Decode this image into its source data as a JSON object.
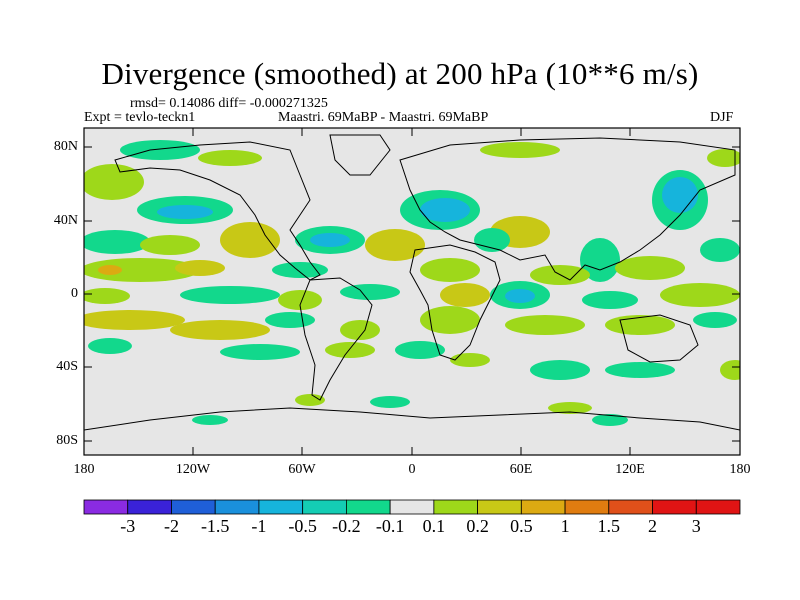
{
  "title": "Divergence (smoothed) at 200 hPa (10**6 m/s)",
  "stats": "rmsd= 0.14086 diff= -0.000271325",
  "expt": "Expt = tevlo-teckn1",
  "comparison": "Maastri.  69MaBP - Maastri.  69MaBP",
  "season": "DJF",
  "y_ticks": [
    "80N",
    "40N",
    "0",
    "40S",
    "80S"
  ],
  "x_ticks": [
    "180",
    "120W",
    "60W",
    "0",
    "60E",
    "120E",
    "180"
  ],
  "colorbar": {
    "labels": [
      "-3",
      "-2",
      "-1.5",
      "-1",
      "-0.5",
      "-0.2",
      "-0.1",
      "0.1",
      "0.2",
      "0.5",
      "1",
      "1.5",
      "2",
      "3"
    ],
    "colors": [
      "#8a2be2",
      "#3a22d8",
      "#1f5fd8",
      "#1a90dc",
      "#16b4dc",
      "#14cdb4",
      "#12d88c",
      "#e6e6e6",
      "#9ed81a",
      "#c8c816",
      "#dcaa12",
      "#e07c10",
      "#e0501a",
      "#e01414",
      "#e01414"
    ]
  },
  "colors": {
    "land_bg": "#e6e6e6",
    "pos_light": "#9ed81a",
    "pos_mid": "#c8c816",
    "pos_strong": "#dcaa12",
    "neg_light": "#12d88c",
    "neg_mid": "#16b4dc",
    "neg_strong": "#1a90dc"
  }
}
